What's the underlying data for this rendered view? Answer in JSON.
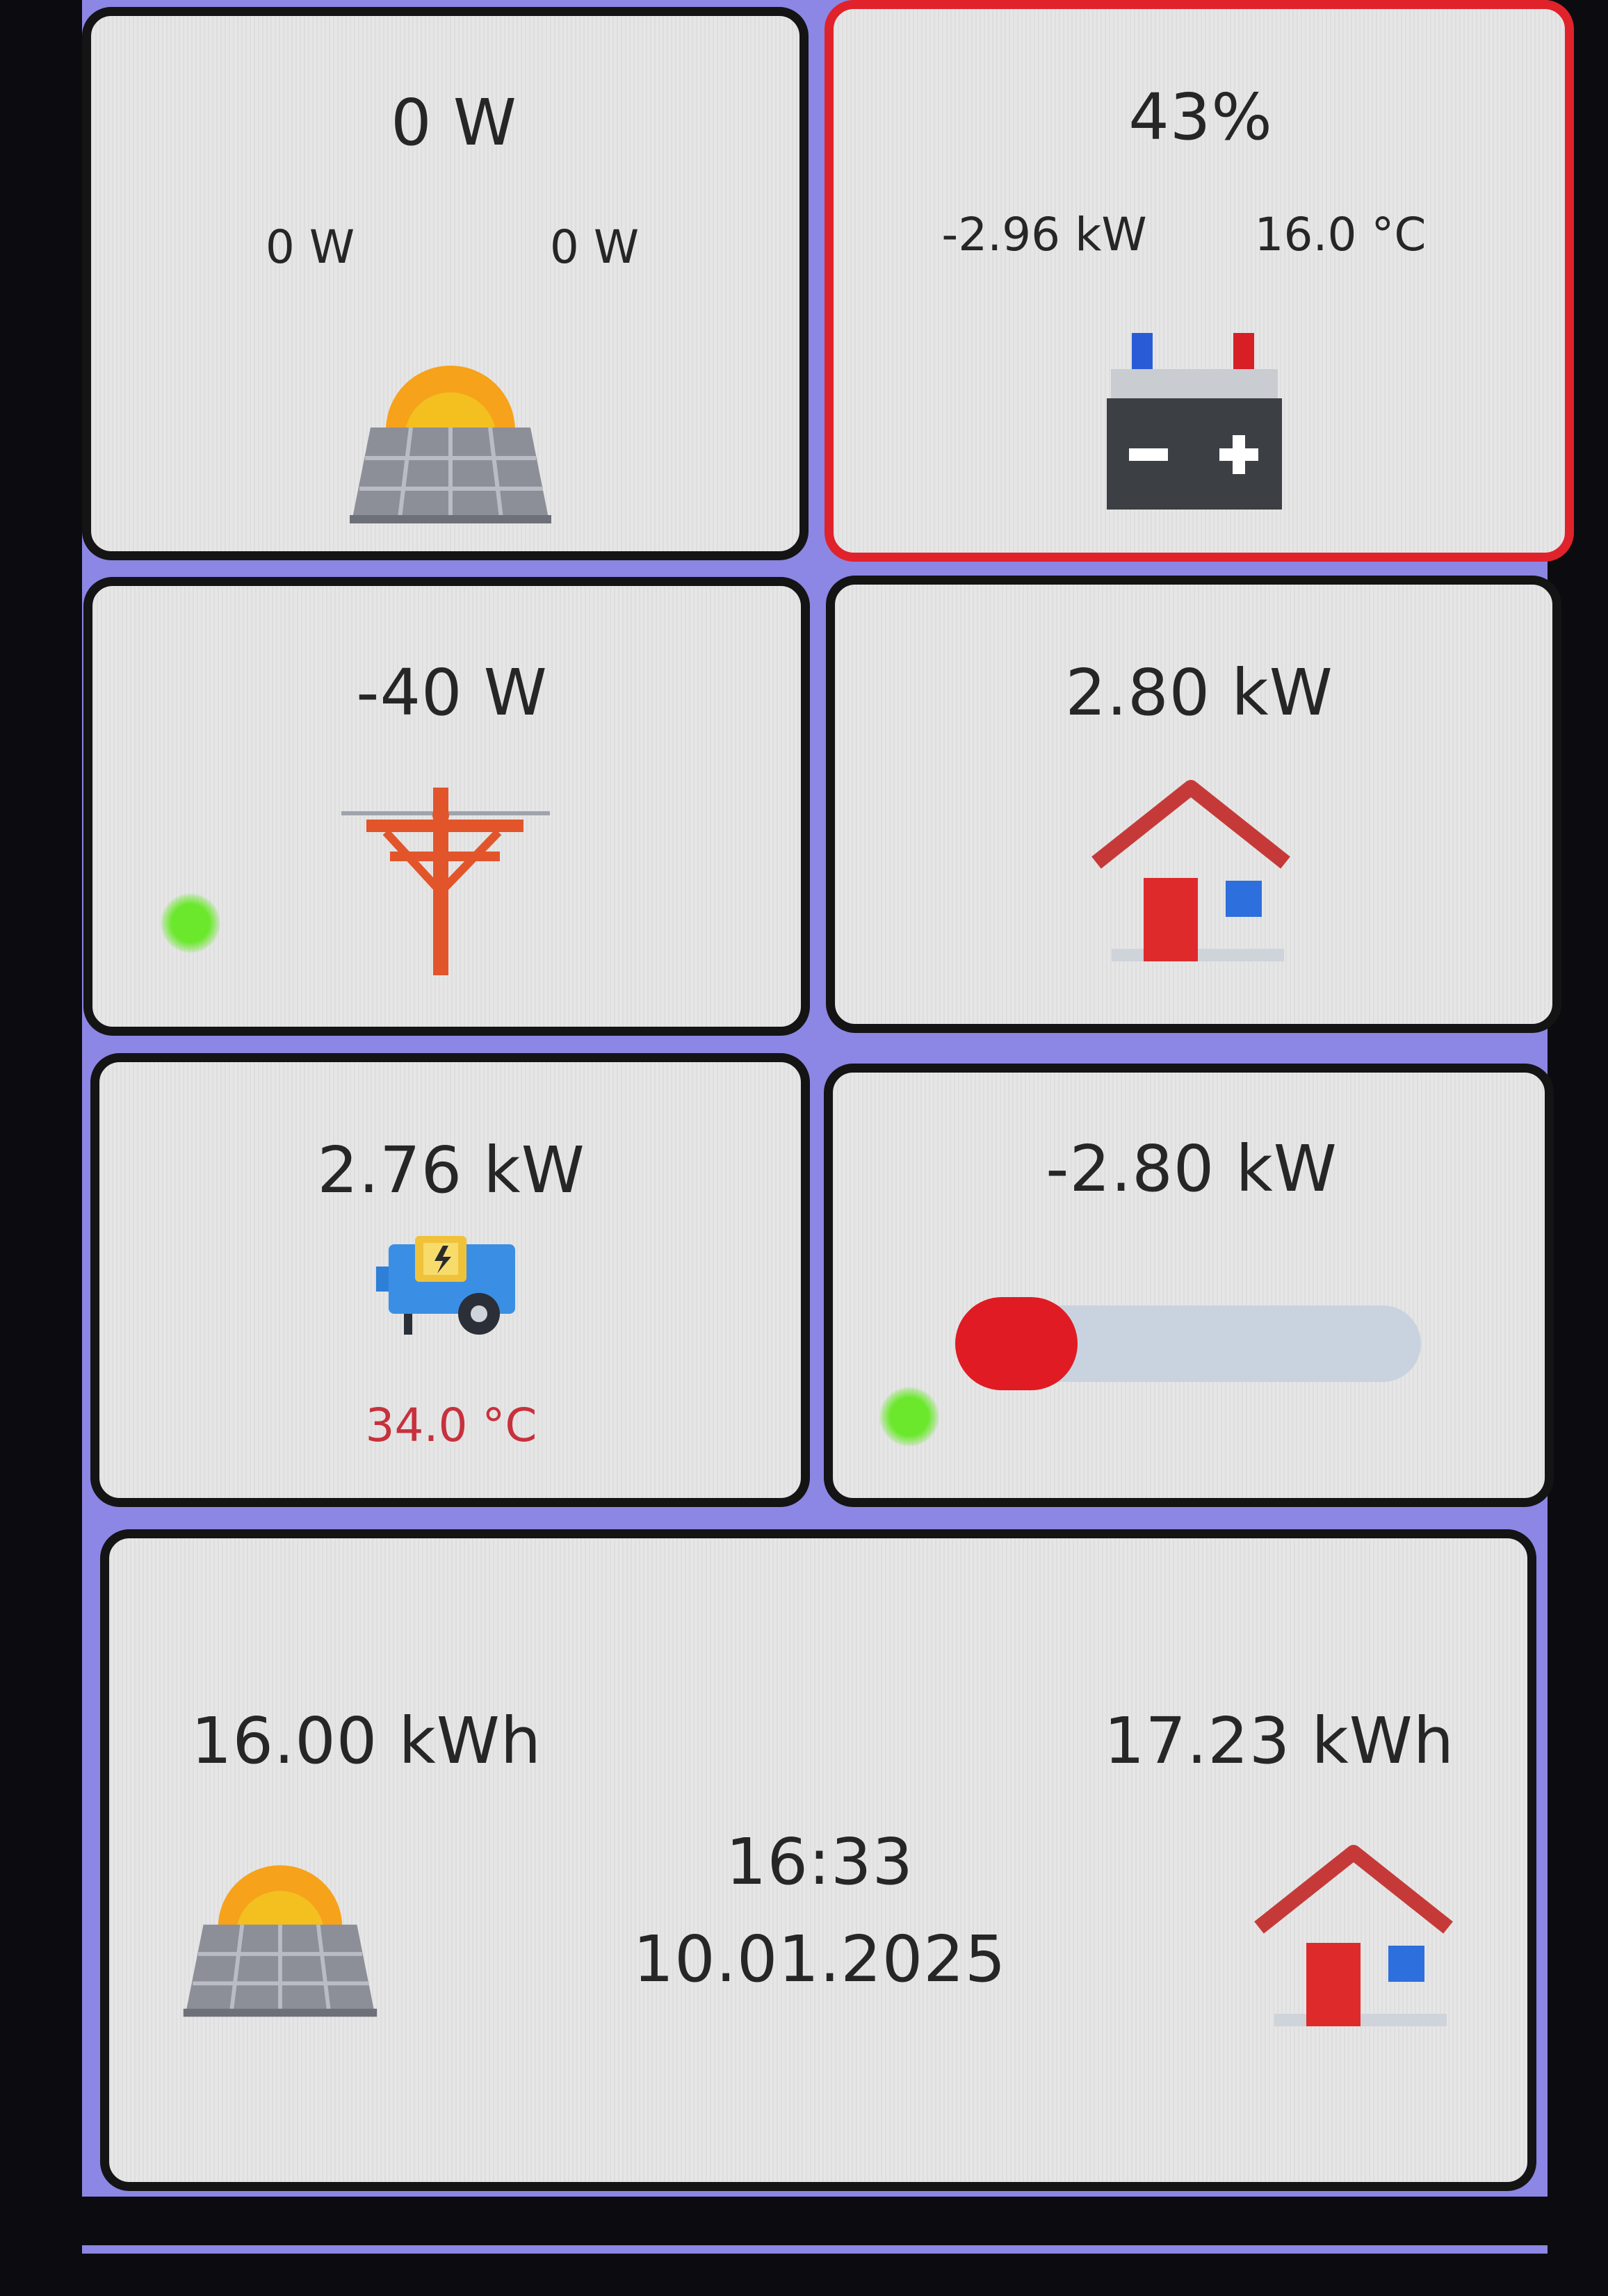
{
  "solar": {
    "total": "0 W",
    "string1": "0 W",
    "string2": "0 W"
  },
  "battery": {
    "soc": "43%",
    "power": "-2.96 kW",
    "temperature": "16.0 °C"
  },
  "grid": {
    "power": "-40 W"
  },
  "house": {
    "power": "2.80 kW"
  },
  "inverter": {
    "power": "2.76 kW",
    "temperature": "34.0 °C"
  },
  "flow": {
    "power": "-2.80 kW",
    "slider_level": 0.0
  },
  "summary": {
    "solar_energy": "16.00 kWh",
    "house_energy": "17.23 kWh",
    "time": "16:33",
    "date": "10.01.2025"
  },
  "colors": {
    "background": "#8c86e4",
    "alert_border": "#e0222b",
    "status_dot": "#6be82c",
    "temperature_text": "#c7313c",
    "slider_knob": "#e01b24",
    "slider_track": "#c9d3df"
  },
  "icons": {
    "solar": "solar-panel-sun-icon",
    "battery": "battery-icon",
    "grid": "power-pole-icon",
    "house": "house-icon",
    "inverter": "generator-icon"
  }
}
